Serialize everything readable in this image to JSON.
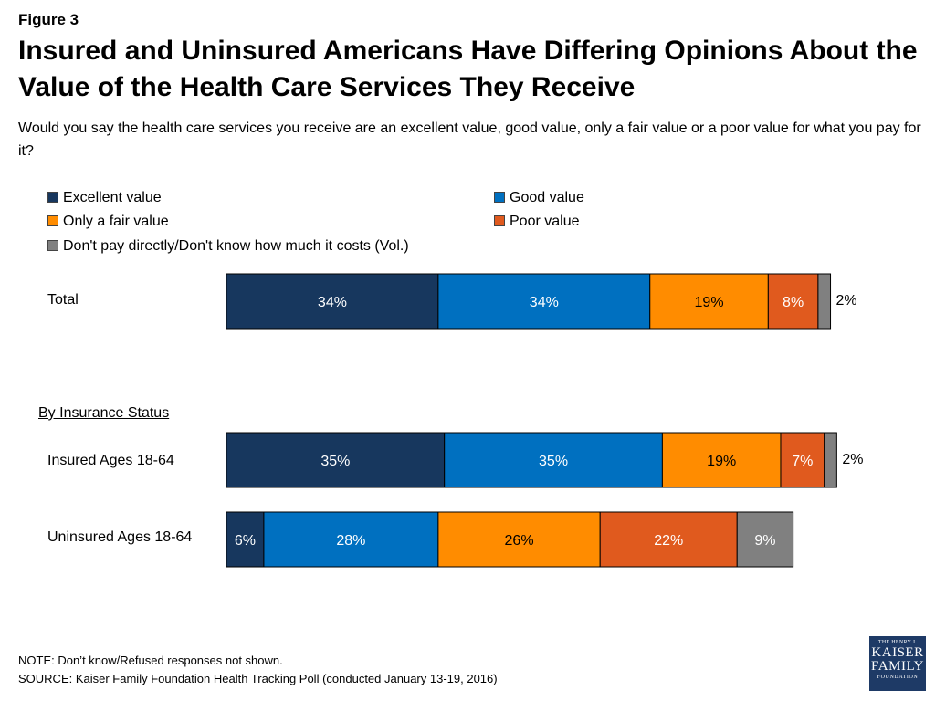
{
  "figure_label": "Figure 3",
  "title": "Insured and Uninsured Americans Have Differing Opinions About the Value of the Health Care Services They Receive",
  "subtitle": "Would you say the health care services you receive are an excellent value, good value, only a fair value or a poor value for what you pay for it?",
  "section_heading": "By Insurance Status",
  "note": "NOTE: Don’t know/Refused responses not shown.",
  "source": "SOURCE: Kaiser Family Foundation Health Tracking Poll (conducted January 13-19, 2016)",
  "logo": {
    "line1": "THE HENRY J.",
    "line2": "KAISER",
    "line3": "FAMILY",
    "line4": "FOUNDATION"
  },
  "chart_data": {
    "type": "bar",
    "orientation": "horizontal",
    "stacked": true,
    "legend_position": "top",
    "categories": [
      "Total",
      "Insured Ages 18-64",
      "Uninsured Ages 18-64"
    ],
    "series": [
      {
        "name": "Excellent value",
        "color": "#17375e",
        "values": [
          34,
          35,
          6
        ],
        "labels": [
          "34%",
          "35%",
          "6%"
        ]
      },
      {
        "name": "Good value",
        "color": "#0070c0",
        "values": [
          34,
          35,
          28
        ],
        "labels": [
          "34%",
          "35%",
          "28%"
        ]
      },
      {
        "name": "Only a fair value",
        "color": "#ff8c00",
        "values": [
          19,
          19,
          26
        ],
        "labels": [
          "19%",
          "19%",
          "26%"
        ]
      },
      {
        "name": "Poor value",
        "color": "#e05a1e",
        "values": [
          8,
          7,
          22
        ],
        "labels": [
          "8%",
          "7%",
          "22%"
        ]
      },
      {
        "name": "Don't pay directly/Don't know how much it costs (Vol.)",
        "color": "#808080",
        "values": [
          2,
          2,
          9
        ],
        "labels": [
          "2%",
          "2%",
          "9%"
        ]
      }
    ]
  }
}
